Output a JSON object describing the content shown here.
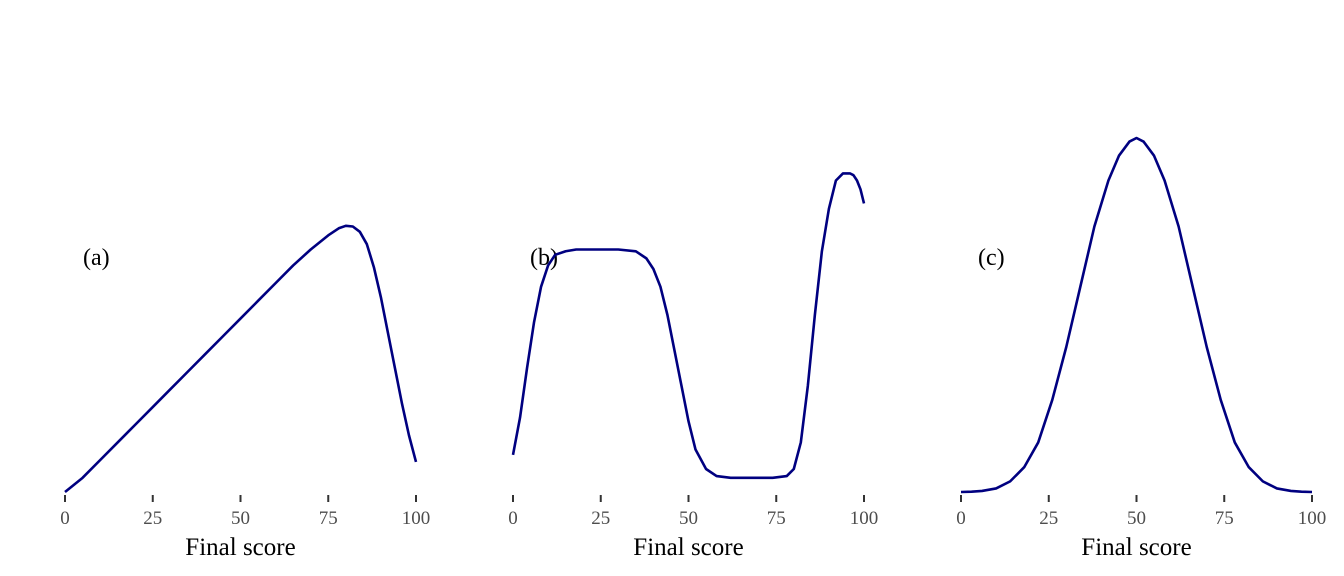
{
  "chart_data": [
    {
      "type": "line",
      "panel_label": "(a)",
      "xlabel": "Final score",
      "ylabel": "",
      "xlim": [
        0,
        100
      ],
      "ylim": [
        0,
        1
      ],
      "x_ticks": [
        0,
        25,
        50,
        75,
        100
      ],
      "grid": false,
      "series": [
        {
          "color": "#000080",
          "x": [
            0,
            5,
            10,
            15,
            20,
            25,
            30,
            35,
            40,
            45,
            50,
            55,
            60,
            65,
            70,
            75,
            78,
            80,
            82,
            84,
            86,
            88,
            90,
            92,
            94,
            96,
            98,
            100
          ],
          "y": [
            0,
            0.04,
            0.09,
            0.14,
            0.19,
            0.24,
            0.29,
            0.34,
            0.39,
            0.44,
            0.49,
            0.54,
            0.59,
            0.64,
            0.685,
            0.725,
            0.745,
            0.752,
            0.75,
            0.735,
            0.7,
            0.635,
            0.55,
            0.45,
            0.35,
            0.25,
            0.16,
            0.085
          ]
        }
      ]
    },
    {
      "type": "line",
      "panel_label": "(b)",
      "xlabel": "Final score",
      "ylabel": "",
      "xlim": [
        0,
        100
      ],
      "ylim": [
        0,
        1
      ],
      "x_ticks": [
        0,
        25,
        50,
        75,
        100
      ],
      "grid": false,
      "series": [
        {
          "color": "#000080",
          "x": [
            0,
            2,
            4,
            6,
            8,
            10,
            12,
            15,
            18,
            22,
            26,
            30,
            35,
            38,
            40,
            42,
            44,
            46,
            48,
            50,
            52,
            55,
            58,
            62,
            66,
            70,
            74,
            78,
            80,
            82,
            84,
            86,
            88,
            90,
            92,
            94,
            96,
            97,
            98,
            99,
            100
          ],
          "y": [
            0.105,
            0.21,
            0.35,
            0.48,
            0.58,
            0.64,
            0.67,
            0.68,
            0.685,
            0.685,
            0.685,
            0.685,
            0.68,
            0.66,
            0.63,
            0.58,
            0.5,
            0.4,
            0.3,
            0.2,
            0.12,
            0.065,
            0.045,
            0.04,
            0.04,
            0.04,
            0.04,
            0.045,
            0.065,
            0.14,
            0.3,
            0.5,
            0.68,
            0.8,
            0.88,
            0.9,
            0.9,
            0.895,
            0.88,
            0.855,
            0.815
          ]
        }
      ]
    },
    {
      "type": "line",
      "panel_label": "(c)",
      "xlabel": "Final score",
      "ylabel": "",
      "xlim": [
        0,
        100
      ],
      "ylim": [
        0,
        1
      ],
      "x_ticks": [
        0,
        25,
        50,
        75,
        100
      ],
      "grid": false,
      "series": [
        {
          "color": "#000080",
          "x": [
            0,
            3,
            6,
            10,
            14,
            18,
            22,
            26,
            30,
            34,
            38,
            42,
            45,
            48,
            50,
            52,
            55,
            58,
            62,
            66,
            70,
            74,
            78,
            82,
            86,
            90,
            94,
            97,
            100
          ],
          "y": [
            0,
            0.001,
            0.003,
            0.01,
            0.03,
            0.07,
            0.14,
            0.26,
            0.41,
            0.58,
            0.75,
            0.88,
            0.95,
            0.99,
            1.0,
            0.99,
            0.95,
            0.88,
            0.75,
            0.58,
            0.41,
            0.26,
            0.14,
            0.07,
            0.03,
            0.01,
            0.003,
            0.001,
            0
          ]
        }
      ]
    }
  ]
}
